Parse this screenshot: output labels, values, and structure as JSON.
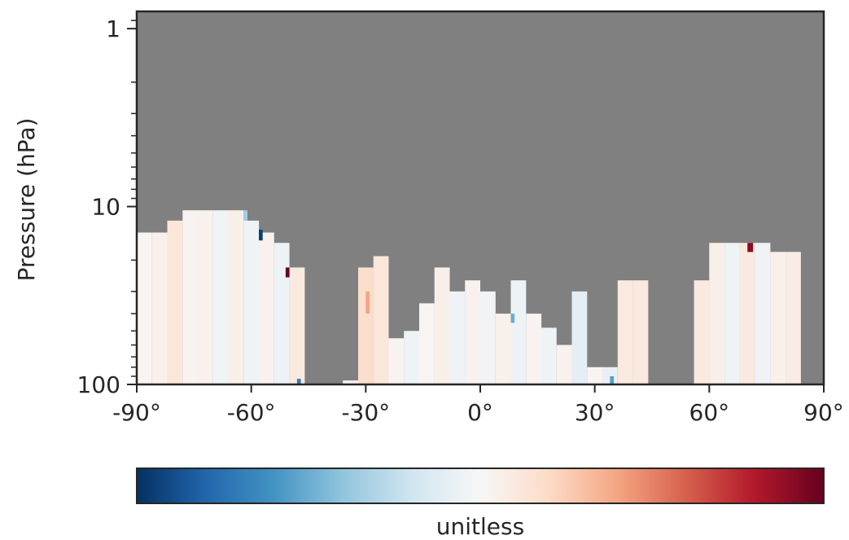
{
  "chart_data": {
    "type": "heatmap",
    "title": "",
    "xlabel": "",
    "ylabel": "Pressure (hPa)",
    "x_range": [
      -90,
      90
    ],
    "y_range": [
      100,
      0.8
    ],
    "y_scale": "log",
    "x_ticks": [
      {
        "value": -90,
        "label": "-90°"
      },
      {
        "value": -60,
        "label": "-60°"
      },
      {
        "value": -30,
        "label": "-30°"
      },
      {
        "value": 0,
        "label": "0°"
      },
      {
        "value": 30,
        "label": "30°"
      },
      {
        "value": 60,
        "label": "60°"
      },
      {
        "value": 90,
        "label": "90°"
      }
    ],
    "y_ticks": [
      {
        "value": 1,
        "label": "1"
      },
      {
        "value": 10,
        "label": "10"
      },
      {
        "value": 100,
        "label": "100"
      }
    ],
    "colorbar": {
      "label": "unitless",
      "colormap": "RdBu_r",
      "orientation": "horizontal",
      "placement": "below"
    },
    "missing_color": "#808080",
    "columns": [
      {
        "lat_start": -90,
        "lat_end": -86,
        "top_hpa": 14,
        "value": 0.02
      },
      {
        "lat_start": -86,
        "lat_end": -82,
        "top_hpa": 14,
        "value": 0.05
      },
      {
        "lat_start": -82,
        "lat_end": -78,
        "top_hpa": 12,
        "value": 0.12
      },
      {
        "lat_start": -78,
        "lat_end": -74,
        "top_hpa": 10.5,
        "value": 0.03
      },
      {
        "lat_start": -74,
        "lat_end": -70,
        "top_hpa": 10.5,
        "value": 0.04
      },
      {
        "lat_start": -70,
        "lat_end": -66,
        "top_hpa": 10.5,
        "value": -0.03
      },
      {
        "lat_start": -66,
        "lat_end": -62,
        "top_hpa": 10.5,
        "value": 0.06
      },
      {
        "lat_start": -62,
        "lat_end": -58,
        "top_hpa": 12,
        "value": -0.05
      },
      {
        "lat_start": -58,
        "lat_end": -54,
        "top_hpa": 14,
        "value": 0.04
      },
      {
        "lat_start": -54,
        "lat_end": -50,
        "top_hpa": 16,
        "value": -0.06
      },
      {
        "lat_start": -50,
        "lat_end": -46,
        "top_hpa": 22,
        "value": 0.1
      },
      {
        "lat_start": -36,
        "lat_end": -32,
        "top_hpa": 95,
        "value": 0.05
      },
      {
        "lat_start": -32,
        "lat_end": -28,
        "top_hpa": 22,
        "value": 0.18
      },
      {
        "lat_start": -28,
        "lat_end": -24,
        "top_hpa": 19,
        "value": 0.12
      },
      {
        "lat_start": -24,
        "lat_end": -20,
        "top_hpa": 55,
        "value": 0.03
      },
      {
        "lat_start": -20,
        "lat_end": -16,
        "top_hpa": 50,
        "value": -0.05
      },
      {
        "lat_start": -16,
        "lat_end": -12,
        "top_hpa": 35,
        "value": 0.02
      },
      {
        "lat_start": -12,
        "lat_end": -8,
        "top_hpa": 22,
        "value": 0.06
      },
      {
        "lat_start": -8,
        "lat_end": -4,
        "top_hpa": 30,
        "value": -0.04
      },
      {
        "lat_start": -4,
        "lat_end": 0,
        "top_hpa": 26,
        "value": 0.04
      },
      {
        "lat_start": 0,
        "lat_end": 4,
        "top_hpa": 30,
        "value": -0.03
      },
      {
        "lat_start": 4,
        "lat_end": 8,
        "top_hpa": 40,
        "value": 0.05
      },
      {
        "lat_start": 8,
        "lat_end": 12,
        "top_hpa": 26,
        "value": -0.06
      },
      {
        "lat_start": 12,
        "lat_end": 16,
        "top_hpa": 40,
        "value": 0.03
      },
      {
        "lat_start": 16,
        "lat_end": 20,
        "top_hpa": 48,
        "value": -0.05
      },
      {
        "lat_start": 20,
        "lat_end": 24,
        "top_hpa": 60,
        "value": 0.04
      },
      {
        "lat_start": 24,
        "lat_end": 28,
        "top_hpa": 30,
        "value": -0.1
      },
      {
        "lat_start": 28,
        "lat_end": 32,
        "top_hpa": 80,
        "value": 0.02
      },
      {
        "lat_start": 32,
        "lat_end": 36,
        "top_hpa": 80,
        "value": -0.08
      },
      {
        "lat_start": 36,
        "lat_end": 40,
        "top_hpa": 26,
        "value": 0.1
      },
      {
        "lat_start": 40,
        "lat_end": 44,
        "top_hpa": 26,
        "value": 0.1
      },
      {
        "lat_start": 56,
        "lat_end": 60,
        "top_hpa": 26,
        "value": 0.1
      },
      {
        "lat_start": 60,
        "lat_end": 64,
        "top_hpa": 16,
        "value": 0.06
      },
      {
        "lat_start": 64,
        "lat_end": 68,
        "top_hpa": 16,
        "value": -0.05
      },
      {
        "lat_start": 68,
        "lat_end": 72,
        "top_hpa": 16,
        "value": 0.1
      },
      {
        "lat_start": 72,
        "lat_end": 76,
        "top_hpa": 16,
        "value": -0.04
      },
      {
        "lat_start": 76,
        "lat_end": 80,
        "top_hpa": 18,
        "value": 0.05
      },
      {
        "lat_start": 80,
        "lat_end": 84,
        "top_hpa": 18,
        "value": 0.08
      }
    ],
    "highlights": [
      {
        "lat_start": -58,
        "lat_end": -57,
        "top_hpa": 13.5,
        "bottom_hpa": 15.5,
        "value": -0.95
      },
      {
        "lat_start": -51,
        "lat_end": -50,
        "top_hpa": 22,
        "bottom_hpa": 25,
        "value": 1.0
      },
      {
        "lat_start": -48,
        "lat_end": -47,
        "top_hpa": 93,
        "bottom_hpa": 100,
        "value": -0.7
      },
      {
        "lat_start": 70,
        "lat_end": 71.5,
        "top_hpa": 16,
        "bottom_hpa": 18,
        "value": 0.9
      },
      {
        "lat_start": -62,
        "lat_end": -61,
        "top_hpa": 10.5,
        "bottom_hpa": 12,
        "value": -0.35
      },
      {
        "lat_start": -30,
        "lat_end": -29,
        "top_hpa": 30,
        "bottom_hpa": 40,
        "value": 0.4
      },
      {
        "lat_start": 34,
        "lat_end": 35,
        "top_hpa": 90,
        "bottom_hpa": 100,
        "value": -0.55
      },
      {
        "lat_start": 8,
        "lat_end": 9,
        "top_hpa": 40,
        "bottom_hpa": 45,
        "value": -0.5
      }
    ]
  }
}
